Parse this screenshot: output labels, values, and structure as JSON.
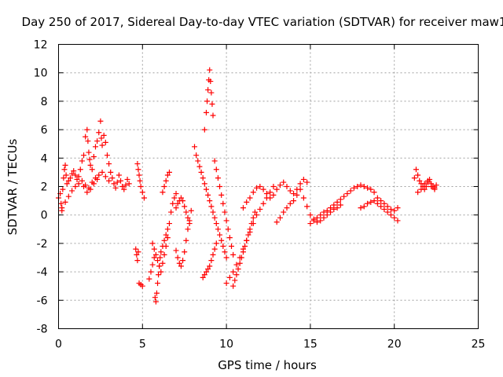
{
  "chart_data": {
    "type": "scatter",
    "title": "Day 250 of 2017, Sidereal Day-to-day VTEC variation (SDTVAR) for receiver maw1",
    "xlabel": "GPS time / hours",
    "ylabel": "SDTVAR / TECUs",
    "xlim": [
      0,
      25
    ],
    "ylim": [
      -8,
      12
    ],
    "xticks": [
      0,
      5,
      10,
      15,
      20,
      25
    ],
    "yticks": [
      -8,
      -6,
      -4,
      -2,
      0,
      2,
      4,
      6,
      8,
      10,
      12
    ],
    "grid": true,
    "marker": "+",
    "marker_color": "#ff0000",
    "series": [
      {
        "name": "SDTVAR",
        "x": [
          0.0,
          0.1,
          0.15,
          0.2,
          0.25,
          0.3,
          0.35,
          0.4,
          0.45,
          0.5,
          0.6,
          0.7,
          0.8,
          0.9,
          1.0,
          1.1,
          1.2,
          1.3,
          1.4,
          1.5,
          1.6,
          1.7,
          1.75,
          1.8,
          1.85,
          1.9,
          2.0,
          2.1,
          2.2,
          2.3,
          2.4,
          2.5,
          2.55,
          2.6,
          2.7,
          2.8,
          2.9,
          3.0,
          3.1,
          3.2,
          3.3,
          3.4,
          3.5,
          3.6,
          3.7,
          3.8,
          3.9,
          4.0,
          4.1,
          4.2,
          1.0,
          1.2,
          1.4,
          1.6,
          1.8,
          2.0,
          2.2,
          2.4,
          2.6,
          2.8,
          3.0,
          0.2,
          0.4,
          0.6,
          0.8,
          1.5,
          1.7,
          1.9,
          2.1,
          2.3,
          4.7,
          4.75,
          4.8,
          4.85,
          4.9,
          5.0,
          5.1,
          4.6,
          4.65,
          4.7,
          4.75,
          4.8,
          4.9,
          5.0,
          5.4,
          5.5,
          5.6,
          5.7,
          5.75,
          5.8,
          5.85,
          5.9,
          5.95,
          6.0,
          6.05,
          6.1,
          6.2,
          6.3,
          6.4,
          6.5,
          6.6,
          6.7,
          6.8,
          6.9,
          7.0,
          5.6,
          5.7,
          5.8,
          5.9,
          6.0,
          6.1,
          6.2,
          6.3,
          6.4,
          6.5,
          6.2,
          6.3,
          6.4,
          6.5,
          6.6,
          7.0,
          7.1,
          7.2,
          7.3,
          7.4,
          7.5,
          7.6,
          7.7,
          7.8,
          7.9,
          7.0,
          7.1,
          7.2,
          7.3,
          7.4,
          7.5,
          7.6,
          7.7,
          7.8,
          8.1,
          8.2,
          8.3,
          8.4,
          8.5,
          8.6,
          8.7,
          8.8,
          8.9,
          9.0,
          9.1,
          9.2,
          9.3,
          9.4,
          9.5,
          9.6,
          9.7,
          9.8,
          9.9,
          10.0,
          8.7,
          8.8,
          8.85,
          8.9,
          8.95,
          9.0,
          9.05,
          9.1,
          9.15,
          9.2,
          8.6,
          8.7,
          8.8,
          8.9,
          9.0,
          9.1,
          9.2,
          9.3,
          9.4,
          9.3,
          9.4,
          9.5,
          9.6,
          9.7,
          9.8,
          9.9,
          10.0,
          10.1,
          10.2,
          10.3,
          10.4,
          10.0,
          10.2,
          10.4,
          10.6,
          10.8,
          11.0,
          11.2,
          11.4,
          11.6,
          11.8,
          12.0,
          12.2,
          12.4,
          12.6,
          12.8,
          10.4,
          10.5,
          10.6,
          10.7,
          10.8,
          10.9,
          11.0,
          11.1,
          11.2,
          11.3,
          11.4,
          11.5,
          11.6,
          11.7,
          11.0,
          11.2,
          11.4,
          11.6,
          11.8,
          12.0,
          12.2,
          12.4,
          12.6,
          12.8,
          13.0,
          13.2,
          13.4,
          13.6,
          13.8,
          14.0,
          14.2,
          14.4,
          14.6,
          14.8,
          13.0,
          13.2,
          13.4,
          13.6,
          13.8,
          14.0,
          14.2,
          14.4,
          14.6,
          14.8,
          15.0,
          15.2,
          15.4,
          15.6,
          15.8,
          16.0,
          16.2,
          16.4,
          16.6,
          16.8,
          15.0,
          15.2,
          15.4,
          15.6,
          15.8,
          16.0,
          16.2,
          16.4,
          16.6,
          16.8,
          17.0,
          17.2,
          17.4,
          17.6,
          17.8,
          18.0,
          18.2,
          18.4,
          18.6,
          18.8,
          18.0,
          18.2,
          18.4,
          18.6,
          18.8,
          19.0,
          19.2,
          19.4,
          19.6,
          19.8,
          20.0,
          20.2,
          19.0,
          19.2,
          19.4,
          19.6,
          19.8,
          20.0,
          20.2,
          21.2,
          21.3,
          21.4,
          21.5,
          21.6,
          21.7,
          21.8,
          21.9,
          22.0,
          22.1,
          22.2,
          22.3,
          22.4,
          22.5,
          21.4,
          21.6,
          21.8,
          22.0,
          22.2,
          22.4
        ],
        "y": [
          1.2,
          1.5,
          0.8,
          0.3,
          1.8,
          2.6,
          3.2,
          3.5,
          2.8,
          2.2,
          2.4,
          2.6,
          2.9,
          3.1,
          2.8,
          2.5,
          2.7,
          3.2,
          3.8,
          4.2,
          5.5,
          6.0,
          5.2,
          4.4,
          3.9,
          3.5,
          3.2,
          4.1,
          4.8,
          5.2,
          5.8,
          6.6,
          5.4,
          4.9,
          5.6,
          5.1,
          4.2,
          3.6,
          3.0,
          2.6,
          2.2,
          1.9,
          2.3,
          2.8,
          2.4,
          2.0,
          1.8,
          2.1,
          2.5,
          2.2,
          2.0,
          2.2,
          2.4,
          2.1,
          1.9,
          2.3,
          2.6,
          2.8,
          3.0,
          2.7,
          2.4,
          0.5,
          0.9,
          1.3,
          1.7,
          2.0,
          1.6,
          1.8,
          2.2,
          2.5,
          3.6,
          3.2,
          2.8,
          2.4,
          2.0,
          1.6,
          1.2,
          -2.4,
          -2.8,
          -3.2,
          -2.6,
          -4.8,
          -4.9,
          -5.0,
          -4.5,
          -4.0,
          -3.5,
          -3.0,
          -5.8,
          -6.1,
          -5.5,
          -4.8,
          -4.2,
          -3.6,
          -3.0,
          -2.6,
          -2.2,
          -1.8,
          -1.4,
          -1.0,
          -0.6,
          0.2,
          0.8,
          1.2,
          1.5,
          -2.0,
          -2.4,
          -2.8,
          -3.2,
          -3.6,
          -4.0,
          -3.4,
          -2.8,
          -2.2,
          -1.6,
          1.6,
          2.0,
          2.4,
          2.8,
          3.0,
          -2.5,
          -3.0,
          -3.4,
          -3.6,
          -3.2,
          -2.6,
          -1.8,
          -1.0,
          -0.4,
          0.3,
          0.5,
          0.8,
          1.0,
          1.2,
          1.0,
          0.6,
          0.2,
          -0.2,
          -0.6,
          4.8,
          4.2,
          3.8,
          3.4,
          3.0,
          2.6,
          2.2,
          1.8,
          1.4,
          1.0,
          0.6,
          0.2,
          -0.2,
          -0.6,
          -1.0,
          -1.4,
          -1.8,
          -2.2,
          -2.6,
          -3.0,
          6.0,
          7.2,
          8.0,
          8.8,
          9.5,
          10.2,
          9.4,
          8.6,
          7.8,
          7.0,
          -4.4,
          -4.2,
          -4.0,
          -3.8,
          -3.6,
          -3.2,
          -2.8,
          -2.4,
          -2.0,
          3.8,
          3.2,
          2.6,
          2.0,
          1.4,
          0.8,
          0.2,
          -0.4,
          -1.0,
          -1.6,
          -2.2,
          -2.8,
          -4.8,
          -4.4,
          -4.0,
          -3.5,
          -3.0,
          -2.4,
          -1.8,
          -1.2,
          -0.6,
          0.0,
          0.4,
          0.8,
          1.2,
          1.6,
          2.0,
          -5.0,
          -4.6,
          -4.2,
          -3.8,
          -3.4,
          -3.0,
          -2.6,
          -2.2,
          -1.8,
          -1.4,
          -1.0,
          -0.6,
          -0.2,
          0.2,
          0.5,
          0.9,
          1.2,
          1.6,
          1.9,
          2.0,
          1.8,
          1.5,
          1.2,
          1.4,
          1.8,
          2.1,
          2.3,
          2.0,
          1.7,
          1.5,
          1.8,
          2.2,
          2.5,
          2.3,
          -0.5,
          -0.2,
          0.2,
          0.5,
          0.8,
          1.0,
          1.4,
          1.8,
          1.2,
          0.6,
          0.0,
          -0.3,
          -0.5,
          -0.4,
          -0.2,
          0.0,
          0.2,
          0.4,
          0.5,
          0.7,
          -0.6,
          -0.4,
          -0.2,
          0.0,
          0.2,
          0.3,
          0.5,
          0.7,
          0.9,
          1.1,
          1.3,
          1.5,
          1.7,
          1.9,
          2.0,
          2.1,
          2.0,
          1.9,
          1.8,
          1.6,
          0.5,
          0.6,
          0.8,
          0.9,
          1.0,
          0.8,
          0.6,
          0.4,
          0.2,
          0.0,
          -0.2,
          -0.4,
          1.2,
          1.0,
          0.8,
          0.6,
          0.4,
          0.3,
          0.5,
          2.6,
          3.2,
          2.8,
          2.4,
          2.2,
          2.0,
          1.8,
          2.0,
          2.3,
          2.5,
          2.2,
          2.0,
          1.9,
          2.1,
          1.6,
          1.8,
          2.2,
          2.4,
          2.0,
          1.8
        ]
      }
    ]
  }
}
